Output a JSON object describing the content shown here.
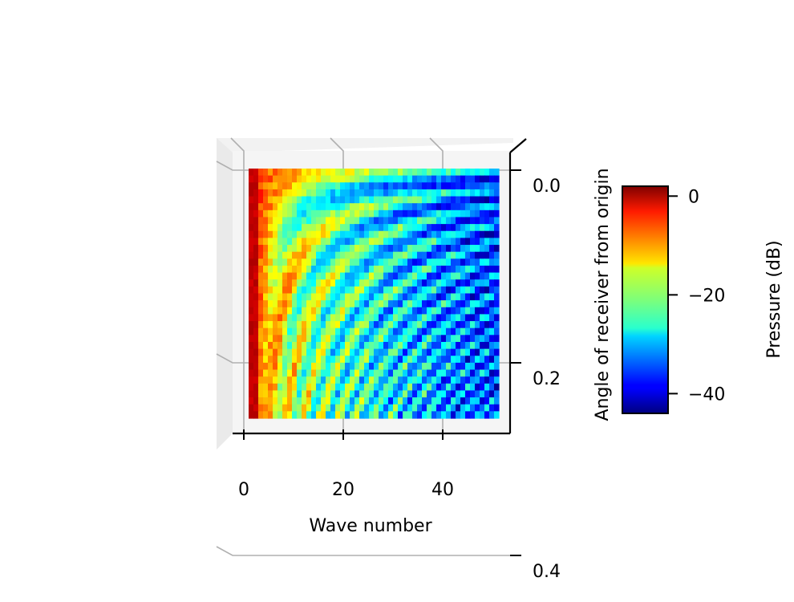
{
  "chart_data": {
    "type": "heatmap",
    "title": "",
    "xlabel": "Wave number",
    "ylabel": "Angle of receiver from origin",
    "x_ticks": [
      0,
      20,
      40
    ],
    "x_tick_labels": [
      "0",
      "20",
      "40"
    ],
    "xlim": [
      0,
      51
    ],
    "y_ticks": [
      0.0,
      0.2,
      0.4
    ],
    "y_tick_labels": [
      "0.0",
      "0.2",
      "0.4"
    ],
    "ylim": [
      0.0,
      0.5
    ],
    "y_inverted": true,
    "grid": true,
    "colormap": "jet",
    "colorbar": {
      "label": "Pressure (dB)",
      "range": [
        -44,
        2
      ],
      "ticks": [
        0,
        -20,
        -40
      ],
      "tick_labels": [
        "0",
        "−20",
        "−40"
      ]
    },
    "series_description": "",
    "grid_size": {
      "nx": 52,
      "ny": 36
    }
  },
  "colors": {
    "pane": "#f2f2f2",
    "grid": "#b0b0b0",
    "axis": "#000000"
  }
}
